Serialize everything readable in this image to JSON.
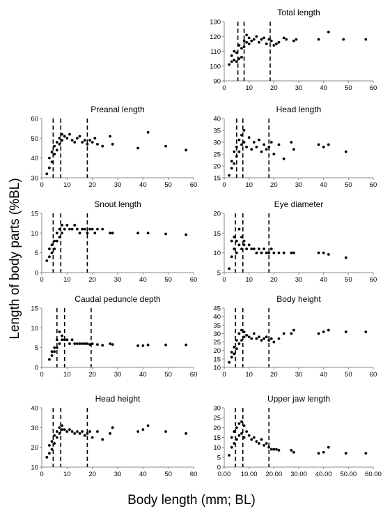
{
  "figure": {
    "ylabel": "Length of body parts (%BL)",
    "xlabel": "Body length (mm; BL)"
  },
  "chart_data": [
    {
      "type": "scatter",
      "title": "Total length",
      "xlim": [
        0,
        60
      ],
      "ylim": [
        90,
        130
      ],
      "xticks": [
        "0",
        "10",
        "20",
        "30",
        "40",
        "50",
        "60"
      ],
      "yticks": [
        "90",
        "100",
        "110",
        "120",
        "130"
      ],
      "vlines": [
        5.5,
        8,
        18.5
      ],
      "x": [
        2,
        3,
        3,
        4,
        4,
        5,
        5,
        6,
        6,
        7,
        7,
        8,
        8,
        9,
        9,
        10,
        10,
        11,
        12,
        13,
        14,
        15,
        16,
        17,
        18,
        19,
        20,
        21,
        22,
        24,
        25,
        28,
        29,
        38,
        42,
        48,
        57
      ],
      "y": [
        101,
        103,
        107,
        104,
        110,
        103,
        109,
        105,
        114,
        106,
        112,
        113,
        117,
        116,
        121,
        115,
        119,
        117,
        118,
        120,
        116,
        118,
        119,
        115,
        118,
        117,
        114,
        115,
        116,
        119,
        118,
        117,
        118,
        118,
        123,
        118,
        118
      ]
    },
    {
      "type": "scatter",
      "title": "Preanal length",
      "xlim": [
        0,
        60
      ],
      "ylim": [
        30,
        60
      ],
      "xticks": [
        "0",
        "10",
        "20",
        "30",
        "40",
        "50",
        "60"
      ],
      "yticks": [
        "30",
        "40",
        "50",
        "60"
      ],
      "vlines": [
        4.5,
        7.5,
        18
      ],
      "x": [
        2,
        3,
        3,
        4,
        4,
        5,
        5,
        6,
        6,
        7,
        7,
        8,
        8,
        9,
        10,
        11,
        12,
        13,
        14,
        15,
        16,
        17,
        18,
        19,
        20,
        21,
        22,
        24,
        27,
        28,
        38,
        42,
        49,
        57
      ],
      "y": [
        32,
        35,
        40,
        38,
        43,
        42,
        46,
        44,
        48,
        47,
        50,
        49,
        52,
        51,
        50,
        52,
        49,
        48,
        50,
        51,
        48,
        49,
        47,
        49,
        48,
        50,
        47,
        46,
        51,
        47,
        45,
        53,
        46,
        44
      ]
    },
    {
      "type": "scatter",
      "title": "Head length",
      "xlim": [
        0,
        60
      ],
      "ylim": [
        15,
        40
      ],
      "xticks": [
        "0",
        "10",
        "20",
        "30",
        "40",
        "50",
        "60"
      ],
      "yticks": [
        "15",
        "20",
        "25",
        "30",
        "35",
        "40"
      ],
      "vlines": [
        5,
        7.5,
        18
      ],
      "x": [
        2,
        3,
        3,
        4,
        4,
        5,
        5,
        6,
        6,
        7,
        7,
        8,
        8,
        9,
        10,
        11,
        12,
        13,
        14,
        15,
        16,
        17,
        18,
        19,
        20,
        22,
        24,
        27,
        28,
        38,
        40,
        42,
        49
      ],
      "y": [
        16,
        19,
        22,
        21,
        26,
        24,
        28,
        26,
        31,
        29,
        33,
        30,
        35,
        28,
        32,
        27,
        30,
        28,
        31,
        26,
        29,
        27,
        28,
        30,
        25,
        29,
        23,
        30,
        27,
        29,
        28,
        29,
        26
      ]
    },
    {
      "type": "scatter",
      "title": "Snout length",
      "xlim": [
        0,
        60
      ],
      "ylim": [
        0,
        15
      ],
      "xticks": [
        "0",
        "10",
        "20",
        "30",
        "40",
        "50",
        "60"
      ],
      "yticks": [
        "0",
        "5",
        "10",
        "15"
      ],
      "vlines": [
        4.5,
        7.5,
        18
      ],
      "x": [
        2,
        3,
        3,
        4,
        4,
        5,
        5,
        6,
        6,
        7,
        7,
        8,
        8,
        9,
        10,
        11,
        12,
        13,
        14,
        15,
        16,
        17,
        18,
        19,
        20,
        21,
        22,
        24,
        27,
        28,
        38,
        42,
        49,
        57
      ],
      "y": [
        3,
        4,
        6,
        5,
        7,
        6,
        8,
        8,
        10,
        9,
        11,
        10,
        12,
        11,
        12,
        11,
        11,
        12,
        11,
        10,
        11,
        11,
        10,
        11,
        11,
        10,
        11,
        11,
        10,
        10,
        10,
        10,
        9.8,
        9.6
      ]
    },
    {
      "type": "scatter",
      "title": "Eye diameter",
      "xlim": [
        0,
        60
      ],
      "ylim": [
        5,
        20
      ],
      "xticks": [
        "0",
        "10",
        "20",
        "30",
        "40",
        "50",
        "60"
      ],
      "yticks": [
        "5",
        "10",
        "15",
        "20"
      ],
      "vlines": [
        4.5,
        7.5,
        18
      ],
      "x": [
        2,
        3,
        3,
        4,
        4,
        5,
        5,
        6,
        6,
        7,
        7,
        8,
        8,
        9,
        10,
        11,
        12,
        13,
        14,
        15,
        16,
        17,
        18,
        19,
        20,
        22,
        24,
        27,
        28,
        38,
        40,
        42,
        49
      ],
      "y": [
        6,
        9,
        13,
        11,
        14,
        10,
        13,
        12,
        16,
        11,
        14,
        12,
        13,
        11,
        12,
        11,
        11,
        10,
        11,
        10,
        11,
        10,
        10,
        11,
        10,
        10,
        10,
        10,
        10,
        10,
        10,
        9.6,
        8.8
      ]
    },
    {
      "type": "scatter",
      "title": "Caudal peduncle depth",
      "xlim": [
        0,
        60
      ],
      "ylim": [
        0,
        15
      ],
      "xticks": [
        "0",
        "10",
        "20",
        "30",
        "40",
        "50",
        "60"
      ],
      "yticks": [
        "0",
        "5",
        "10",
        "15"
      ],
      "vlines": [
        6,
        9,
        19.5
      ],
      "x": [
        3,
        4,
        4,
        5,
        5,
        6,
        6,
        7,
        7,
        8,
        8,
        9,
        10,
        11,
        12,
        13,
        14,
        15,
        16,
        17,
        18,
        19,
        20,
        22,
        24,
        27,
        28,
        38,
        40,
        42,
        49,
        57
      ],
      "y": [
        2,
        3,
        4,
        4,
        5,
        5,
        7,
        6,
        9,
        7,
        8,
        7,
        7,
        6,
        7,
        6,
        6,
        6,
        6,
        6,
        6,
        5.8,
        6,
        5.8,
        5.6,
        6,
        5.8,
        5.5,
        5.5,
        5.7,
        5.7,
        5.7
      ]
    },
    {
      "type": "scatter",
      "title": "Body height",
      "xlim": [
        0,
        60
      ],
      "ylim": [
        10,
        45
      ],
      "xticks": [
        "0",
        "10",
        "20",
        "30",
        "40",
        "50",
        "60"
      ],
      "yticks": [
        "10",
        "15",
        "20",
        "25",
        "30",
        "35",
        "40",
        "45"
      ],
      "vlines": [
        4.5,
        7.5,
        18
      ],
      "x": [
        2,
        3,
        3,
        4,
        4,
        5,
        5,
        6,
        6,
        7,
        7,
        8,
        8,
        9,
        10,
        11,
        12,
        13,
        14,
        15,
        16,
        17,
        18,
        19,
        20,
        22,
        24,
        27,
        28,
        38,
        40,
        42,
        49,
        57
      ],
      "y": [
        13,
        16,
        19,
        18,
        22,
        21,
        26,
        24,
        30,
        26,
        32,
        28,
        31,
        29,
        28,
        27,
        30,
        27,
        28,
        26,
        27,
        28,
        26,
        27,
        25,
        27,
        30,
        30,
        32,
        30,
        31,
        32,
        31,
        31
      ]
    },
    {
      "type": "scatter",
      "title": "Head height",
      "xlim": [
        0,
        60
      ],
      "ylim": [
        10,
        40
      ],
      "xticks": [
        "0",
        "10",
        "20",
        "30",
        "40",
        "50",
        "60"
      ],
      "yticks": [
        "10",
        "20",
        "30",
        "40"
      ],
      "vlines": [
        4.5,
        7.5,
        18
      ],
      "x": [
        2,
        3,
        3,
        4,
        4,
        5,
        5,
        6,
        6,
        7,
        7,
        8,
        8,
        9,
        10,
        11,
        12,
        13,
        14,
        15,
        16,
        17,
        18,
        19,
        20,
        22,
        24,
        27,
        28,
        38,
        40,
        42,
        49,
        57
      ],
      "y": [
        15,
        17,
        21,
        19,
        23,
        22,
        26,
        25,
        28,
        27,
        30,
        29,
        31,
        29,
        28,
        29,
        28,
        27,
        28,
        27,
        28,
        26,
        27,
        28,
        25,
        28,
        24,
        27,
        30,
        28,
        29,
        31,
        28,
        27
      ]
    },
    {
      "type": "scatter",
      "title": "Upper jaw length",
      "xlim": [
        0,
        60
      ],
      "ylim": [
        0,
        30
      ],
      "xticks": [
        "0.00",
        "10.00",
        "20.00",
        "30.00",
        "40.00",
        "50.00",
        "60.00"
      ],
      "yticks": [
        "0",
        "5",
        "10",
        "15",
        "20",
        "25",
        "30"
      ],
      "vlines": [
        4.5,
        7.5,
        18
      ],
      "x": [
        2,
        3,
        3,
        4,
        4,
        5,
        5,
        6,
        6,
        7,
        7,
        8,
        8,
        9,
        10,
        11,
        12,
        13,
        14,
        15,
        16,
        17,
        18,
        19,
        20,
        21,
        22,
        27,
        28,
        38,
        40,
        42,
        49,
        57
      ],
      "y": [
        6,
        10,
        15,
        12,
        18,
        14,
        20,
        16,
        22,
        17,
        23,
        15,
        21,
        18,
        16,
        14,
        15,
        13,
        12,
        14,
        11,
        12,
        10,
        9,
        9,
        9,
        8.5,
        8.5,
        7.5,
        7,
        7.5,
        10,
        7,
        7
      ]
    }
  ]
}
